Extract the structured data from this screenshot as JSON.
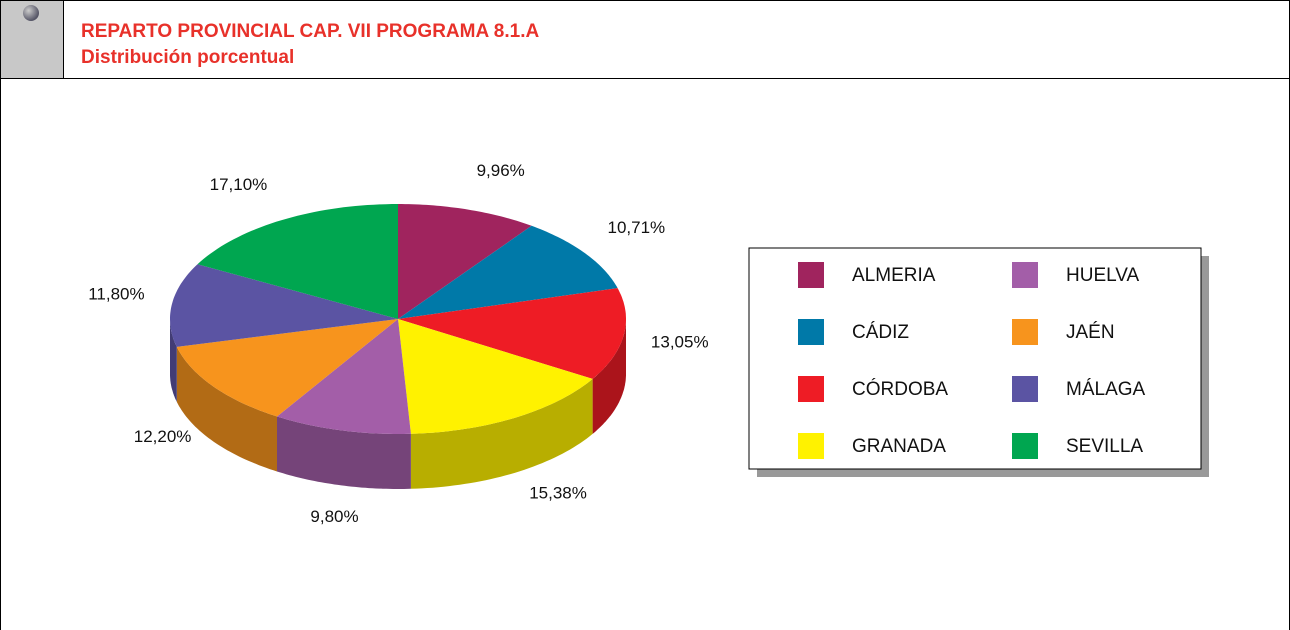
{
  "header": {
    "title": "REPARTO PROVINCIAL CAP. VII PROGRAMA 8.1.A",
    "subtitle": "Distribución porcentual"
  },
  "chart_data": {
    "type": "pie",
    "categories": [
      "ALMERIA",
      "CÁDIZ",
      "CÓRDOBA",
      "GRANADA",
      "HUELVA",
      "JAÉN",
      "MÁLAGA",
      "SEVILLA"
    ],
    "values": [
      9.96,
      10.71,
      13.05,
      15.38,
      9.8,
      12.2,
      11.8,
      17.1
    ],
    "value_labels": [
      "9,96%",
      "10,71%",
      "13,05%",
      "15,38%",
      "9,80%",
      "12,20%",
      "11,80%",
      "17,10%"
    ],
    "colors": [
      "#a0245e",
      "#0079a8",
      "#ee1c25",
      "#fff200",
      "#a35ea8",
      "#f7941d",
      "#5b54a3",
      "#00a650"
    ],
    "legend": "right"
  }
}
